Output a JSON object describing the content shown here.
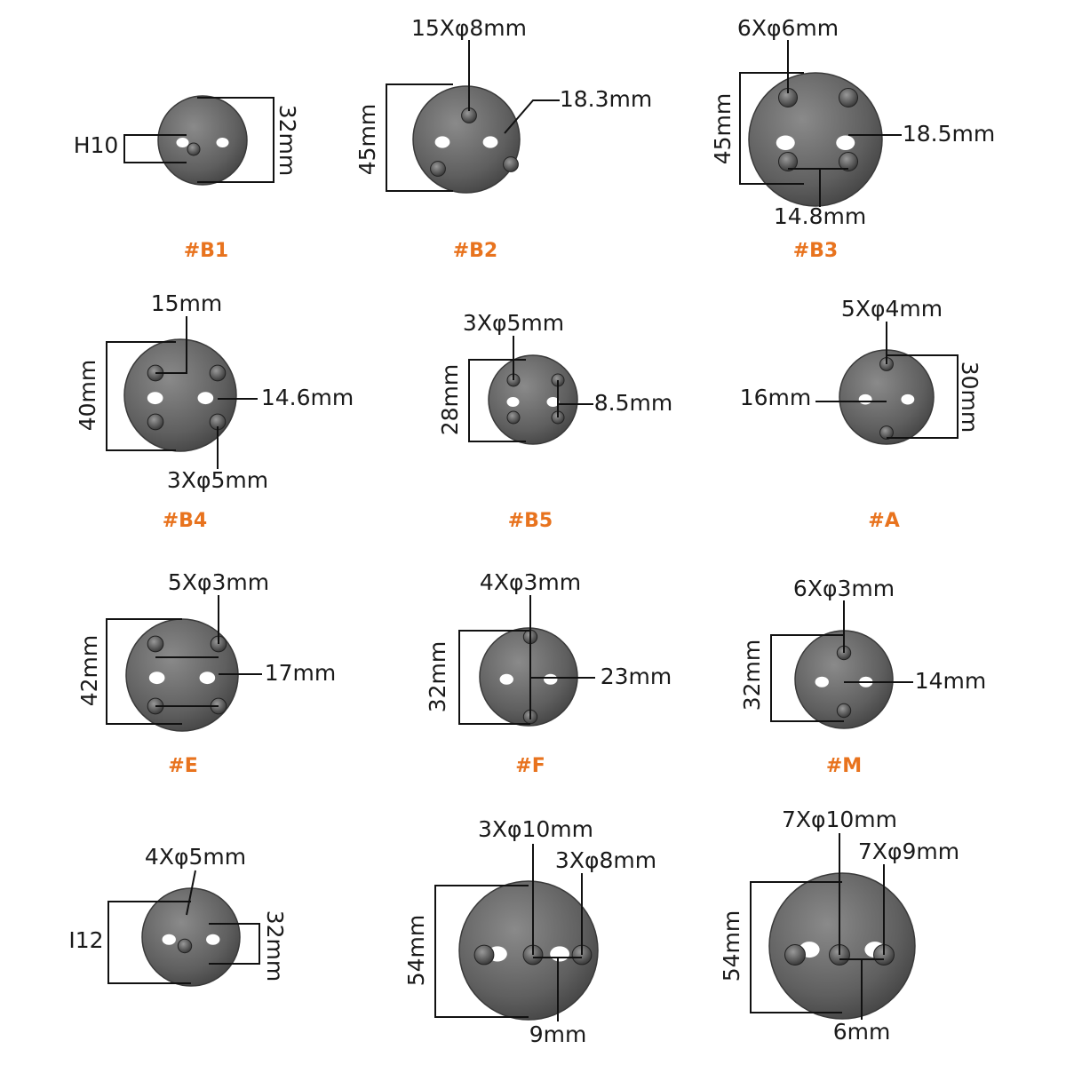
{
  "items": [
    {
      "label": "#B1",
      "dims": [
        "H10",
        "32mm"
      ]
    },
    {
      "label": "#B2",
      "dims": [
        "15Xφ8mm",
        "18.3mm",
        "45mm"
      ]
    },
    {
      "label": "#B3",
      "dims": [
        "6Xφ6mm",
        "18.5mm",
        "14.8mm",
        "45mm"
      ]
    },
    {
      "label": "#B4",
      "dims": [
        "15mm",
        "14.6mm",
        "3Xφ5mm",
        "40mm"
      ]
    },
    {
      "label": "#B5",
      "dims": [
        "3Xφ5mm",
        "8.5mm",
        "28mm"
      ]
    },
    {
      "label": "#A",
      "dims": [
        "5Xφ4mm",
        "16mm",
        "30mm"
      ]
    },
    {
      "label": "#E",
      "dims": [
        "5Xφ3mm",
        "17mm",
        "42mm"
      ]
    },
    {
      "label": "#F",
      "dims": [
        "4Xφ3mm",
        "23mm",
        "32mm"
      ]
    },
    {
      "label": "#M",
      "dims": [
        "6Xφ3mm",
        "14mm",
        "32mm"
      ]
    },
    {
      "dims": [
        "4Xφ5mm",
        "I12",
        "32mm"
      ]
    },
    {
      "dims": [
        "3Xφ10mm",
        "3Xφ8mm",
        "9mm",
        "54mm"
      ]
    },
    {
      "dims": [
        "7Xφ10mm",
        "7Xφ9mm",
        "6mm",
        "54mm"
      ]
    }
  ]
}
